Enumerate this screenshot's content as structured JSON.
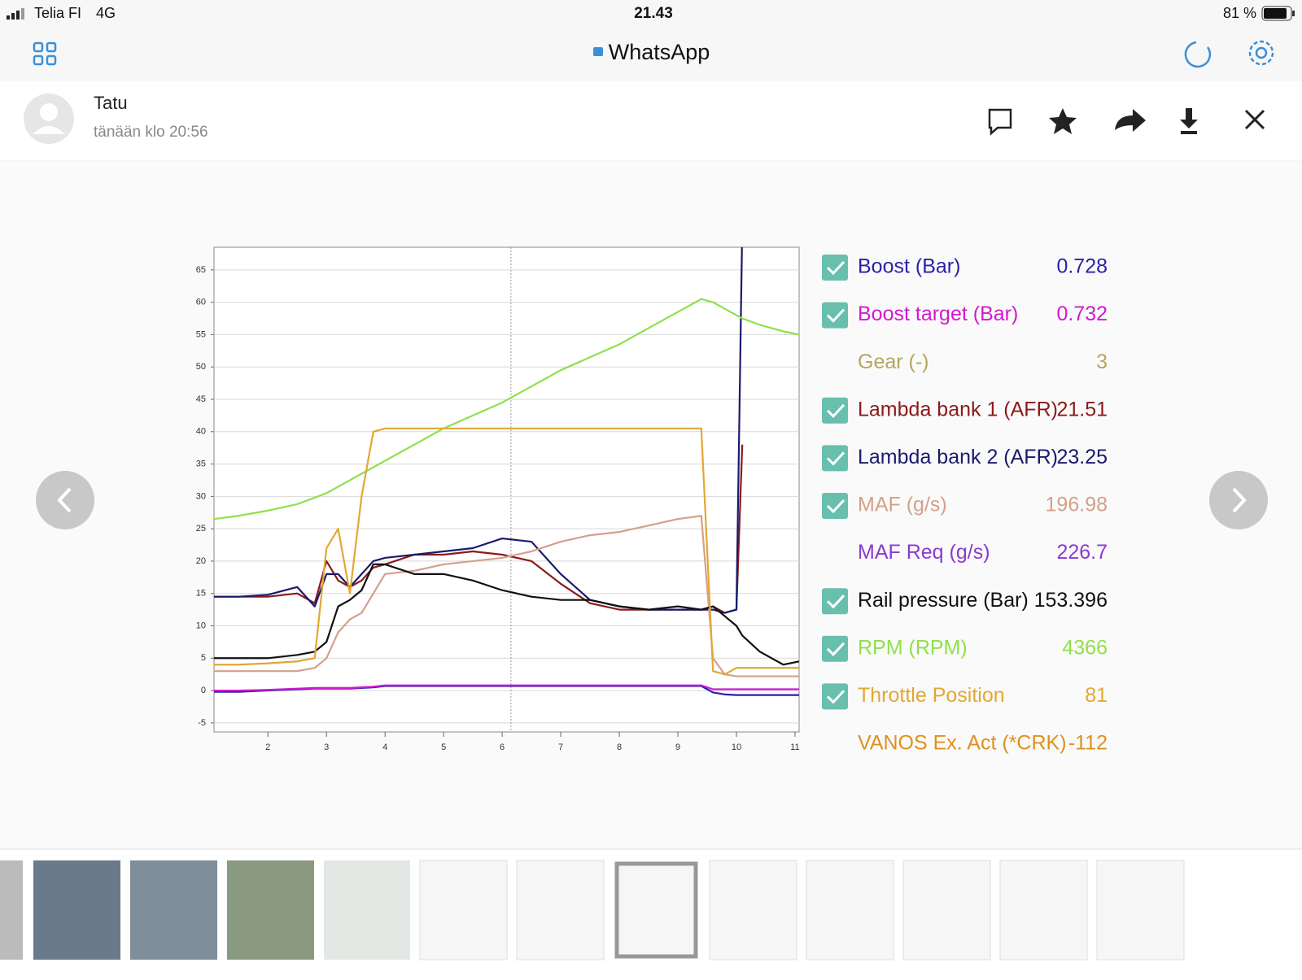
{
  "status_bar": {
    "carrier": "Telia FI",
    "network": "4G",
    "time": "21.43",
    "battery": "81 %"
  },
  "browser": {
    "title": "WhatsApp"
  },
  "message": {
    "sender": "Tatu",
    "timestamp": "tänään klo 20:56"
  },
  "chart_data": {
    "type": "line",
    "x": [
      1.08,
      1.5,
      2,
      2.5,
      2.8,
      3,
      3.2,
      3.4,
      3.6,
      3.8,
      4,
      4.5,
      5,
      5.5,
      6,
      6.5,
      7,
      7.5,
      8,
      8.5,
      9,
      9.4,
      9.6,
      9.8,
      10,
      10.1,
      10.4,
      10.8,
      11.07
    ],
    "xlim": [
      1.08,
      11.07
    ],
    "xticks": [
      2,
      3,
      4,
      5,
      6,
      7,
      8,
      9,
      10,
      11
    ],
    "ylim": [
      -6.4,
      68.5
    ],
    "yticks": [
      -5,
      0,
      5,
      10,
      15,
      20,
      25,
      30,
      35,
      40,
      45,
      50,
      55,
      60,
      65
    ],
    "grid": true,
    "cursor_x": 6.15,
    "series": [
      {
        "name": "Boost (Bar)",
        "readout": "0.728",
        "checked": true,
        "color": "#2b1fa8",
        "values": [
          -0.2,
          -0.2,
          0,
          0.2,
          0.3,
          0.3,
          0.3,
          0.3,
          0.4,
          0.5,
          0.7,
          0.7,
          0.7,
          0.7,
          0.7,
          0.7,
          0.7,
          0.7,
          0.7,
          0.7,
          0.7,
          0.7,
          -0.3,
          -0.6,
          -0.7,
          -0.7,
          -0.7,
          -0.7,
          -0.7
        ]
      },
      {
        "name": "Boost target (Bar)",
        "readout": "0.732",
        "checked": true,
        "color": "#d01ad0",
        "values": [
          0,
          0,
          0.1,
          0.3,
          0.4,
          0.4,
          0.4,
          0.4,
          0.5,
          0.6,
          0.8,
          0.8,
          0.8,
          0.8,
          0.8,
          0.8,
          0.8,
          0.8,
          0.8,
          0.8,
          0.8,
          0.8,
          0.2,
          0.2,
          0.2,
          0.2,
          0.2,
          0.2,
          0.2
        ]
      },
      {
        "name": "Gear (-)",
        "readout": "3",
        "checked": false,
        "color": "#b3a660"
      },
      {
        "name": "Lambda bank 1 (AFR)",
        "readout": "21.51",
        "checked": true,
        "color": "#8b1a1a",
        "values": [
          14.5,
          14.5,
          14.5,
          15,
          13.5,
          20,
          17,
          16,
          17,
          19,
          19.5,
          21,
          21,
          21.5,
          21,
          20,
          16.5,
          13.5,
          12.5,
          12.5,
          12.5,
          12.5,
          13,
          12,
          12.5,
          38,
          null,
          null,
          null
        ]
      },
      {
        "name": "Lambda bank 2 (AFR)",
        "readout": "23.25",
        "checked": true,
        "color": "#1a1a6e",
        "values": [
          14.5,
          14.5,
          14.8,
          16,
          13,
          18,
          18,
          16,
          18,
          20,
          20.5,
          21,
          21.5,
          22,
          23.5,
          23,
          18,
          14,
          13,
          12.5,
          12.5,
          12.5,
          12.5,
          12,
          12.5,
          72,
          null,
          null,
          null
        ]
      },
      {
        "name": "MAF (g/s)",
        "readout": "196.98",
        "checked": true,
        "color": "#d4a08a",
        "values": [
          3,
          3,
          3,
          3,
          3.5,
          5,
          9,
          11,
          12,
          15,
          18,
          18.5,
          19.5,
          20,
          20.5,
          21.5,
          23,
          24,
          24.5,
          25.5,
          26.5,
          27,
          5,
          2.5,
          2.2,
          2.2,
          2.2,
          2.2,
          2.2
        ]
      },
      {
        "name": "MAF Req (g/s)",
        "readout": "226.7",
        "checked": false,
        "color": "#8a3ad0"
      },
      {
        "name": "Rail pressure (Bar)",
        "readout": "153.396",
        "checked": true,
        "color": "#111111",
        "values": [
          5,
          5,
          5,
          5.5,
          6,
          7.5,
          13,
          14,
          15.5,
          19.5,
          19.5,
          18,
          18,
          17,
          15.5,
          14.5,
          14,
          14,
          13,
          12.5,
          13,
          12.5,
          13,
          11.5,
          10,
          8.5,
          6,
          4,
          4.5
        ]
      },
      {
        "name": "RPM (RPM)",
        "readout": "4366",
        "checked": true,
        "color": "#8fe04a",
        "values": [
          26.5,
          27,
          27.8,
          28.8,
          29.8,
          30.5,
          31.5,
          32.5,
          33.5,
          34.5,
          35.5,
          38,
          40.5,
          42.5,
          44.5,
          47,
          49.5,
          51.5,
          53.5,
          56,
          58.5,
          60.5,
          60,
          59,
          58,
          57.5,
          56.5,
          55.5,
          55
        ]
      },
      {
        "name": "Throttle Position",
        "readout": "81",
        "checked": true,
        "color": "#e3a733",
        "values": [
          4,
          4,
          4.2,
          4.5,
          5,
          22,
          25,
          15,
          30,
          40,
          40.5,
          40.5,
          40.5,
          40.5,
          40.5,
          40.5,
          40.5,
          40.5,
          40.5,
          40.5,
          40.5,
          40.5,
          3,
          2.5,
          3.5,
          3.5,
          3.5,
          3.5,
          3.5
        ]
      },
      {
        "name": "VANOS Ex. Act (*CRK)",
        "readout": "-112",
        "checked": false,
        "color": "#e0901e"
      }
    ]
  }
}
